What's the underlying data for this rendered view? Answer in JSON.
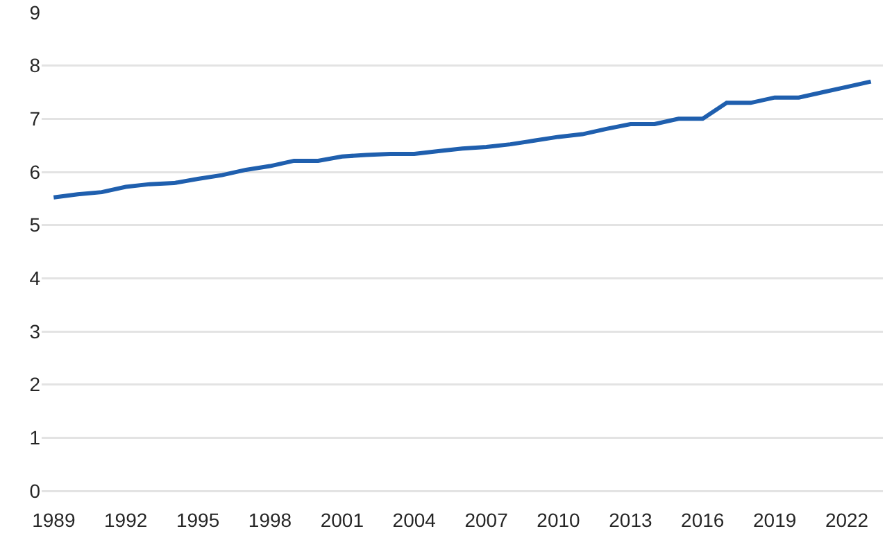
{
  "chart_data": {
    "type": "line",
    "categories": [
      "1989",
      null,
      null,
      "1992",
      null,
      null,
      "1995",
      null,
      null,
      "1998",
      null,
      null,
      "2001",
      null,
      null,
      "2004",
      null,
      null,
      "2007",
      null,
      null,
      "2010",
      null,
      null,
      "2013",
      null,
      null,
      "2016",
      null,
      null,
      "2019",
      null,
      null,
      "2022",
      null
    ],
    "series": [
      {
        "color": "#1f5fae",
        "values": [
          5.52,
          5.58,
          5.62,
          5.72,
          5.77,
          5.79,
          5.87,
          5.94,
          6.04,
          6.11,
          6.21,
          6.21,
          6.29,
          6.32,
          6.34,
          6.34,
          6.39,
          6.44,
          6.47,
          6.52,
          6.59,
          6.66,
          6.71,
          6.81,
          6.9,
          6.9,
          7.0,
          7.0,
          7.3,
          7.3,
          7.4,
          7.4,
          7.5,
          7.6,
          7.7
        ]
      }
    ],
    "ylim": [
      0,
      9
    ],
    "yticks": [
      0,
      1,
      2,
      3,
      4,
      5,
      6,
      7,
      8,
      9
    ],
    "grid": "y",
    "marker": "none",
    "line_style": "solid"
  }
}
